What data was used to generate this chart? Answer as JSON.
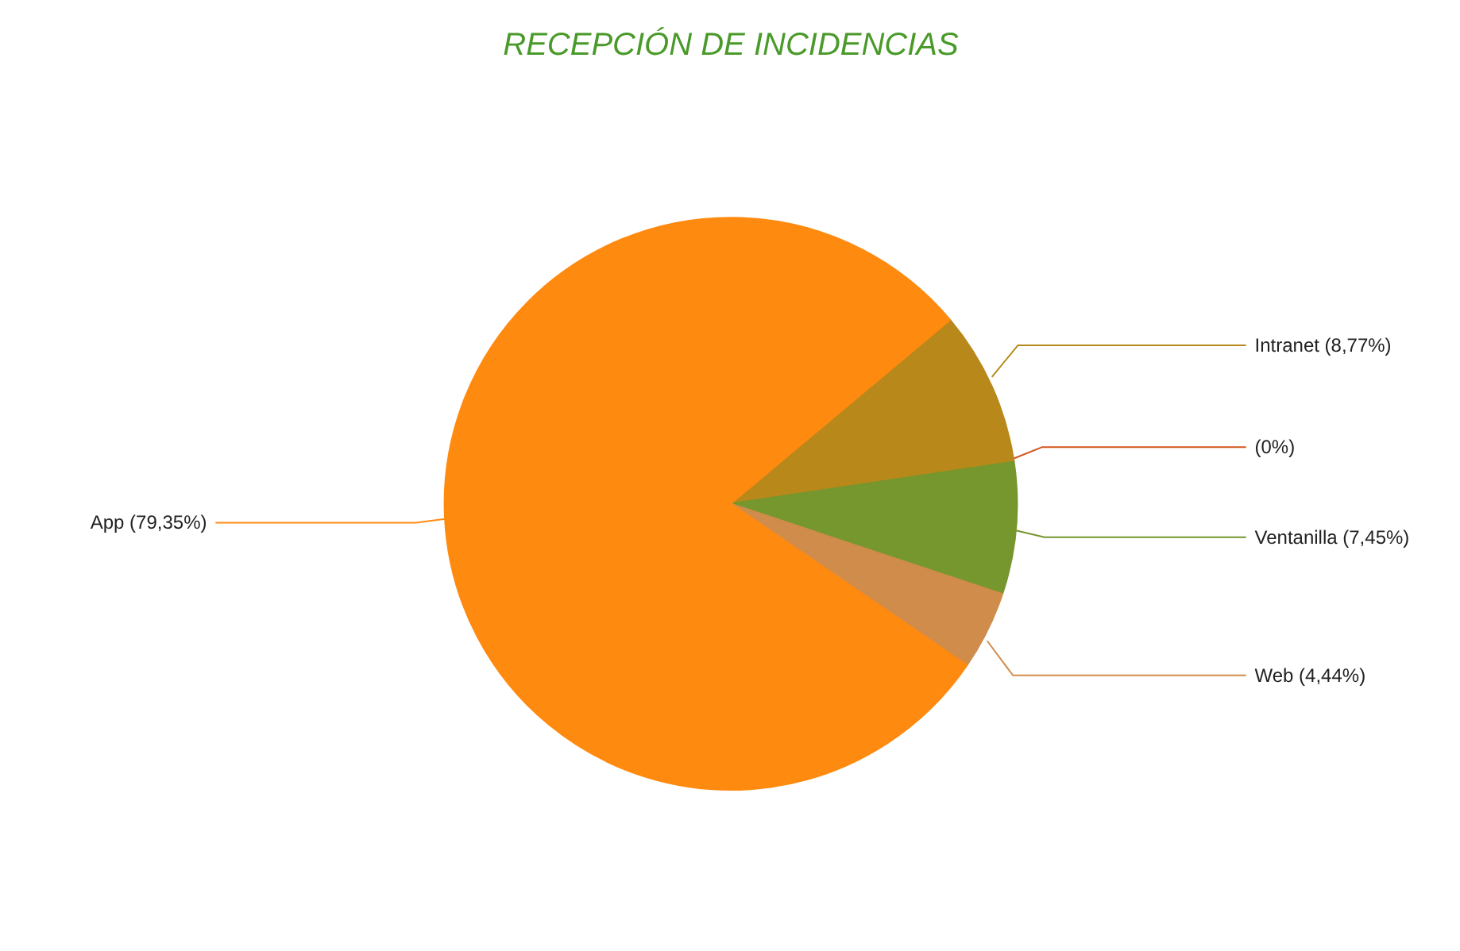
{
  "chart_data": {
    "type": "pie",
    "title": "RECEPCIÓN DE INCIDENCIAS",
    "categories": [
      "Intranet",
      null,
      "Ventanilla",
      "Web",
      "App"
    ],
    "values": [
      8.77,
      0,
      7.45,
      4.44,
      79.35
    ],
    "value_labels": [
      "(8,77%)",
      "(0%)",
      "(7,45%)",
      "(4,44%)",
      "(79,35%)"
    ],
    "colors": [
      "#b8891a",
      "#d2541a",
      "#76962e",
      "#d08c4a",
      "#ff8a10"
    ]
  }
}
